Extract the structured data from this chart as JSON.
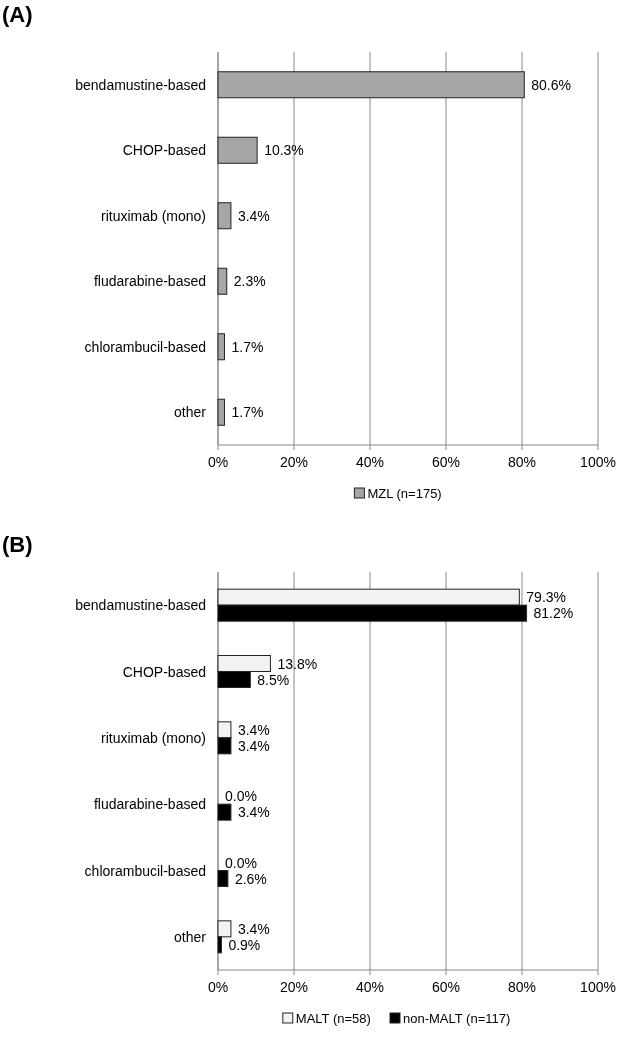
{
  "chart_data": [
    {
      "type": "bar",
      "title": "(A)",
      "orientation": "horizontal",
      "categories": [
        "bendamustine-based",
        "CHOP-based",
        "rituximab (mono)",
        "fludarabine-based",
        "chlorambucil-based",
        "other"
      ],
      "series": [
        {
          "name": "MZL (n=175)",
          "color": "#a6a6a6",
          "values": [
            80.6,
            10.3,
            3.4,
            2.3,
            1.7,
            1.7
          ],
          "value_labels": [
            "80.6%",
            "10.3%",
            "3.4%",
            "2.3%",
            "1.7%",
            "1.7%"
          ]
        }
      ],
      "xlim": [
        0,
        100
      ],
      "xticks": [
        {
          "value": 0,
          "label": "0%"
        },
        {
          "value": 20,
          "label": "20%"
        },
        {
          "value": 40,
          "label": "40%"
        },
        {
          "value": 60,
          "label": "60%"
        },
        {
          "value": 80,
          "label": "80%"
        },
        {
          "value": 100,
          "label": "100%"
        }
      ],
      "grid": "x",
      "legend": "bottom"
    },
    {
      "type": "bar",
      "title": "(B)",
      "orientation": "horizontal",
      "categories": [
        "bendamustine-based",
        "CHOP-based",
        "rituximab (mono)",
        "fludarabine-based",
        "chlorambucil-based",
        "other"
      ],
      "series": [
        {
          "name": "MALT (n=58)",
          "color": "#f2f2f2",
          "values": [
            79.3,
            13.8,
            3.4,
            0.0,
            0.0,
            3.4
          ],
          "value_labels": [
            "79.3%",
            "13.8%",
            "3.4%",
            "0.0%",
            "0.0%",
            "3.4%"
          ]
        },
        {
          "name": "non-MALT (n=117)",
          "color": "#000000",
          "values": [
            81.2,
            8.5,
            3.4,
            3.4,
            2.6,
            0.9
          ],
          "value_labels": [
            "81.2%",
            "8.5%",
            "3.4%",
            "3.4%",
            "2.6%",
            "0.9%"
          ]
        }
      ],
      "xlim": [
        0,
        100
      ],
      "xticks": [
        {
          "value": 0,
          "label": "0%"
        },
        {
          "value": 20,
          "label": "20%"
        },
        {
          "value": 40,
          "label": "40%"
        },
        {
          "value": 60,
          "label": "60%"
        },
        {
          "value": 80,
          "label": "80%"
        },
        {
          "value": 100,
          "label": "100%"
        }
      ],
      "grid": "x",
      "legend": "bottom"
    }
  ]
}
